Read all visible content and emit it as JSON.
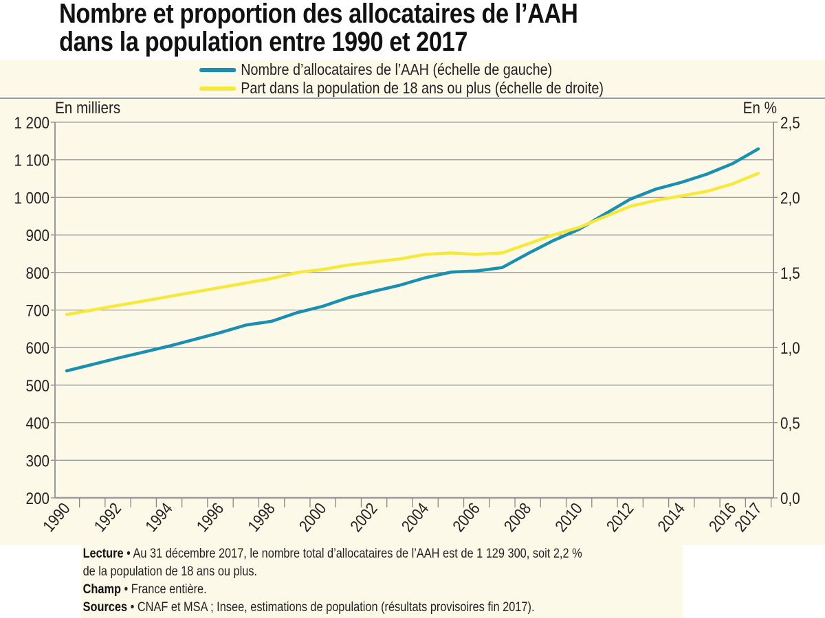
{
  "title_line1": "Nombre et proportion des allocataires de l’AAH",
  "title_line2": "dans la population entre 1990 et 2017",
  "chart_data": {
    "type": "line",
    "title": "Nombre et proportion des allocataires de l’AAH dans la population entre 1990 et 2017",
    "x": [
      1990,
      1991,
      1992,
      1993,
      1994,
      1995,
      1996,
      1997,
      1998,
      1999,
      2000,
      2001,
      2002,
      2003,
      2004,
      2005,
      2006,
      2007,
      2008,
      2009,
      2010,
      2011,
      2012,
      2013,
      2014,
      2015,
      2016,
      2017
    ],
    "x_tick_labels": [
      "1990",
      "1992",
      "1994",
      "1996",
      "1998",
      "2000",
      "2002",
      "2004",
      "2006",
      "2008",
      "2010",
      "2012",
      "2014",
      "2016",
      "2017"
    ],
    "ylabel_left": "En milliers",
    "ylabel_right": "En %",
    "ylim_left": [
      200,
      1200
    ],
    "ylim_right": [
      0,
      2.5
    ],
    "y_ticks_left": [
      "200",
      "300",
      "400",
      "500",
      "600",
      "700",
      "800",
      "900",
      "1 000",
      "1 100",
      "1 200"
    ],
    "y_ticks_right": [
      "0,0",
      "0,5",
      "1,0",
      "1,5",
      "2,0",
      "2,5"
    ],
    "grid": true,
    "legend_position": "top",
    "series": [
      {
        "name": "Nombre d’allocataires de l’AAH (échelle de gauche)",
        "axis": "left",
        "color": "#1a8fb0",
        "values": [
          538,
          555,
          572,
          588,
          604,
          622,
          640,
          660,
          670,
          693,
          710,
          733,
          750,
          766,
          786,
          801,
          804,
          813,
          850,
          885,
          915,
          955,
          995,
          1022,
          1040,
          1062,
          1090,
          1129
        ]
      },
      {
        "name": "Part dans la population de 18 ans ou plus (échelle de droite)",
        "axis": "right",
        "color": "#f7e93c",
        "values": [
          1.22,
          1.25,
          1.28,
          1.31,
          1.34,
          1.37,
          1.4,
          1.43,
          1.46,
          1.5,
          1.52,
          1.55,
          1.57,
          1.59,
          1.62,
          1.63,
          1.62,
          1.63,
          1.69,
          1.75,
          1.8,
          1.87,
          1.94,
          1.98,
          2.01,
          2.04,
          2.09,
          2.16
        ]
      }
    ]
  },
  "notes": {
    "lecture_label": "Lecture",
    "lecture_text": " • Au 31 décembre 2017, le nombre total d’allocataires de l’AAH est de 1 129 300, soit 2,2 %",
    "lecture_text2": "de la population de 18 ans ou plus.",
    "champ_label": "Champ",
    "champ_text": " • France entière.",
    "sources_label": "Sources",
    "sources_text": " • CNAF et MSA ; Insee, estimations de population (résultats provisoires fin 2017)."
  }
}
